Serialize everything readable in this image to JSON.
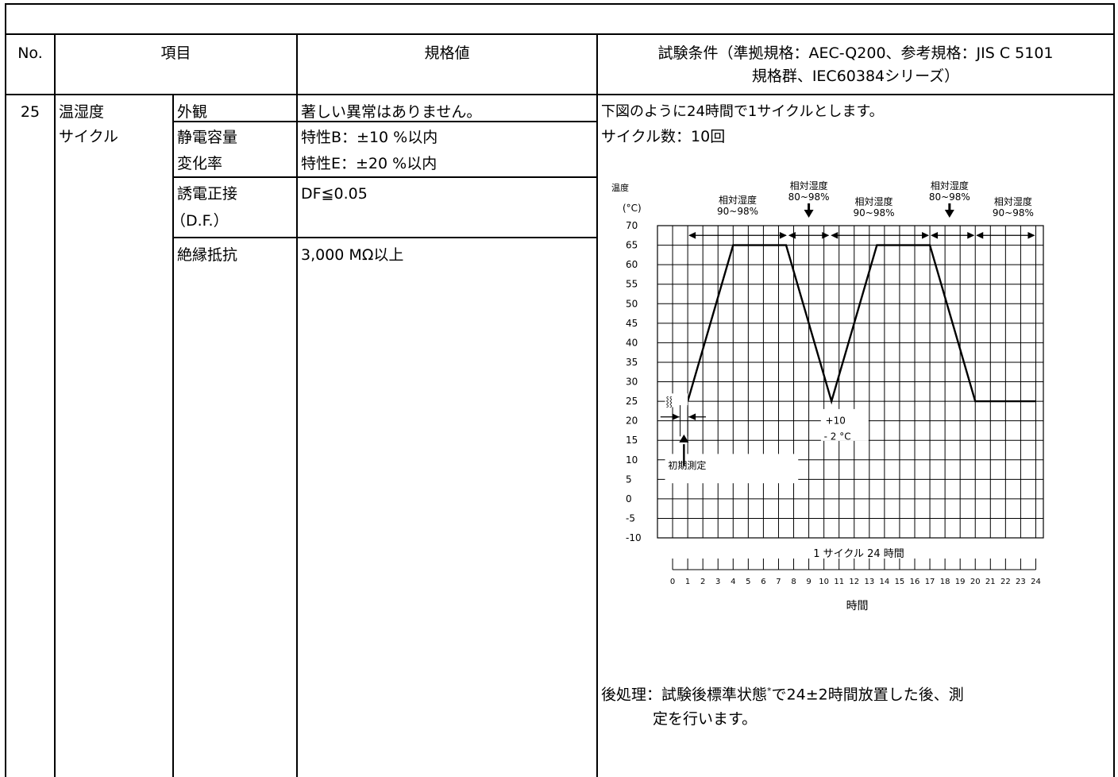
{
  "table": {
    "header": {
      "no": "No.",
      "item": "項目",
      "spec": "規格値",
      "condition_line1": "試験条件（準拠規格：AEC-Q200、参考規格：JIS C 5101",
      "condition_line2": "規格群、IEC60384シリーズ）"
    },
    "row": {
      "no": "25",
      "name_line1": "温湿度",
      "name_line2": "サイクル",
      "items": [
        {
          "name_lines": [
            "外観"
          ],
          "spec_lines": [
            "著しい異常はありません。"
          ]
        },
        {
          "name_lines": [
            "静電容量",
            "変化率"
          ],
          "spec_lines": [
            "特性B：±10 %以内",
            "特性E：±20 %以内"
          ]
        },
        {
          "name_lines": [
            "誘電正接",
            "（D.F.）"
          ],
          "spec_lines": [
            "DF≦0.05"
          ]
        },
        {
          "name_lines": [
            "絶縁抵抗"
          ],
          "spec_lines": [
            "3,000 MΩ以上"
          ]
        }
      ],
      "condition": {
        "line1": "下図のように24時間で1サイクルとします。",
        "line2": "サイクル数：10回",
        "post_line1": "後処理：試験後標準状態",
        "post_mark": "*",
        "post_line1_rest": "で24±2時間放置した後、測",
        "post_line2": "定を行います。"
      }
    }
  },
  "chart_data": {
    "type": "line",
    "ylabel_line1": "温度",
    "ylabel_line2": "(°C)",
    "xlabel": "時間",
    "cycle_label": "1 サイクル 24 時間",
    "x_ticks": [
      0,
      1,
      2,
      3,
      4,
      5,
      6,
      7,
      8,
      9,
      10,
      11,
      12,
      13,
      14,
      15,
      16,
      17,
      18,
      19,
      20,
      21,
      22,
      23,
      24
    ],
    "y_ticks": [
      70,
      65,
      60,
      55,
      50,
      45,
      40,
      35,
      30,
      25,
      20,
      15,
      10,
      5,
      0,
      -5,
      -10
    ],
    "xlim": [
      -1,
      24.5
    ],
    "ylim": [
      -10,
      70
    ],
    "grid": true,
    "series": [
      {
        "x": [
          1,
          4,
          7.5,
          10.5,
          13.5,
          17,
          20,
          24
        ],
        "y": [
          25,
          65,
          65,
          25,
          65,
          65,
          25,
          25
        ]
      }
    ],
    "annotations": {
      "rh_label": "相対湿度",
      "rh_low": "90~98%",
      "rh_high": "80~98%",
      "tolerance_line1": "+10",
      "tolerance_line2": "- 2 °C",
      "initial": "初期測定",
      "break_mark": "⸾⸾"
    }
  }
}
